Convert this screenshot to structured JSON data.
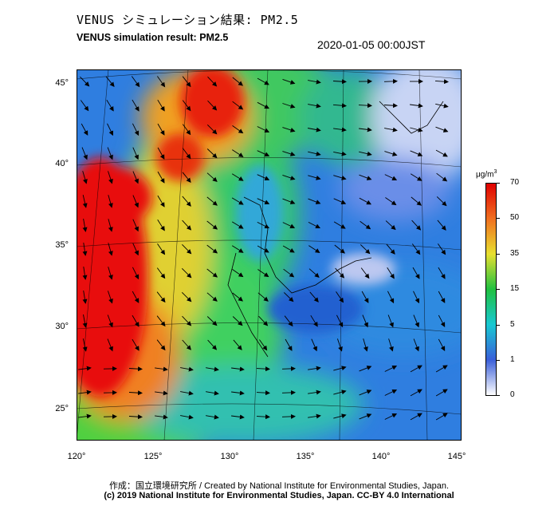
{
  "header": {
    "title_jp": "VENUS シミュレーション結果: PM2.5",
    "title_en": "VENUS simulation result: PM2.5",
    "timestamp": "2020-01-05 00:00JST"
  },
  "map": {
    "lat_labels": [
      "45°",
      "40°",
      "35°",
      "30°",
      "25°"
    ],
    "lon_labels": [
      "120°",
      "125°",
      "130°",
      "135°",
      "140°",
      "145°"
    ],
    "lat_range": [
      23,
      46
    ],
    "lon_range": [
      120,
      145
    ]
  },
  "colorbar": {
    "unit_base": "μg/m",
    "unit_sup": "3",
    "labels": [
      "70",
      "50",
      "35",
      "15",
      "5",
      "1",
      "0"
    ],
    "stops": [
      "#ffffff",
      "#3a5fd9",
      "#18c8d2",
      "#20c040",
      "#e8e030",
      "#f07020",
      "#e00000"
    ]
  },
  "footer": {
    "credit_line1": "作成：国立環境研究所 / Created by National Institute for Environmental Studies, Japan.",
    "credit_line2": "(c) 2019 National Institute for Environmental Studies, Japan. CC-BY 4.0 International"
  }
}
